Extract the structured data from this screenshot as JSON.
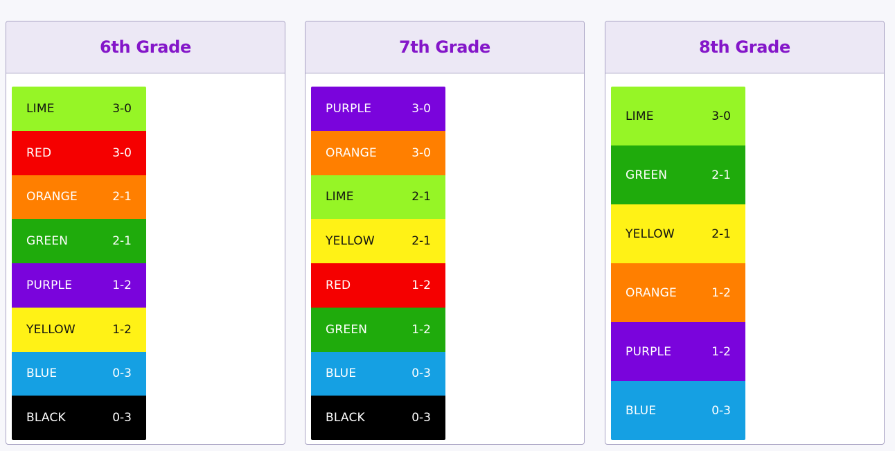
{
  "colors": {
    "LIME": {
      "bg": "#96f526",
      "fg": "#111111"
    },
    "RED": {
      "bg": "#f50000",
      "fg": "#ffffff"
    },
    "ORANGE": {
      "bg": "#ff7f00",
      "fg": "#ffffff"
    },
    "GREEN": {
      "bg": "#1fab0c",
      "fg": "#ffffff"
    },
    "PURPLE": {
      "bg": "#7a04dc",
      "fg": "#ffffff"
    },
    "YELLOW": {
      "bg": "#fff216",
      "fg": "#111111"
    },
    "BLUE": {
      "bg": "#15a0e3",
      "fg": "#ffffff"
    },
    "BLACK": {
      "bg": "#000000",
      "fg": "#ffffff"
    }
  },
  "grades": [
    {
      "title": "6th Grade",
      "standings": [
        {
          "team": "LIME",
          "record": "3-0"
        },
        {
          "team": "RED",
          "record": "3-0"
        },
        {
          "team": "ORANGE",
          "record": "2-1"
        },
        {
          "team": "GREEN",
          "record": "2-1"
        },
        {
          "team": "PURPLE",
          "record": "1-2"
        },
        {
          "team": "YELLOW",
          "record": "1-2"
        },
        {
          "team": "BLUE",
          "record": "0-3"
        },
        {
          "team": "BLACK",
          "record": "0-3"
        }
      ]
    },
    {
      "title": "7th Grade",
      "standings": [
        {
          "team": "PURPLE",
          "record": "3-0"
        },
        {
          "team": "ORANGE",
          "record": "3-0"
        },
        {
          "team": "LIME",
          "record": "2-1"
        },
        {
          "team": "YELLOW",
          "record": "2-1"
        },
        {
          "team": "RED",
          "record": "1-2"
        },
        {
          "team": "GREEN",
          "record": "1-2"
        },
        {
          "team": "BLUE",
          "record": "0-3"
        },
        {
          "team": "BLACK",
          "record": "0-3"
        }
      ]
    },
    {
      "title": "8th Grade",
      "standings": [
        {
          "team": "LIME",
          "record": "3-0"
        },
        {
          "team": "GREEN",
          "record": "2-1"
        },
        {
          "team": "YELLOW",
          "record": "2-1"
        },
        {
          "team": "ORANGE",
          "record": "1-2"
        },
        {
          "team": "PURPLE",
          "record": "1-2"
        },
        {
          "team": "BLUE",
          "record": "0-3"
        }
      ]
    }
  ]
}
